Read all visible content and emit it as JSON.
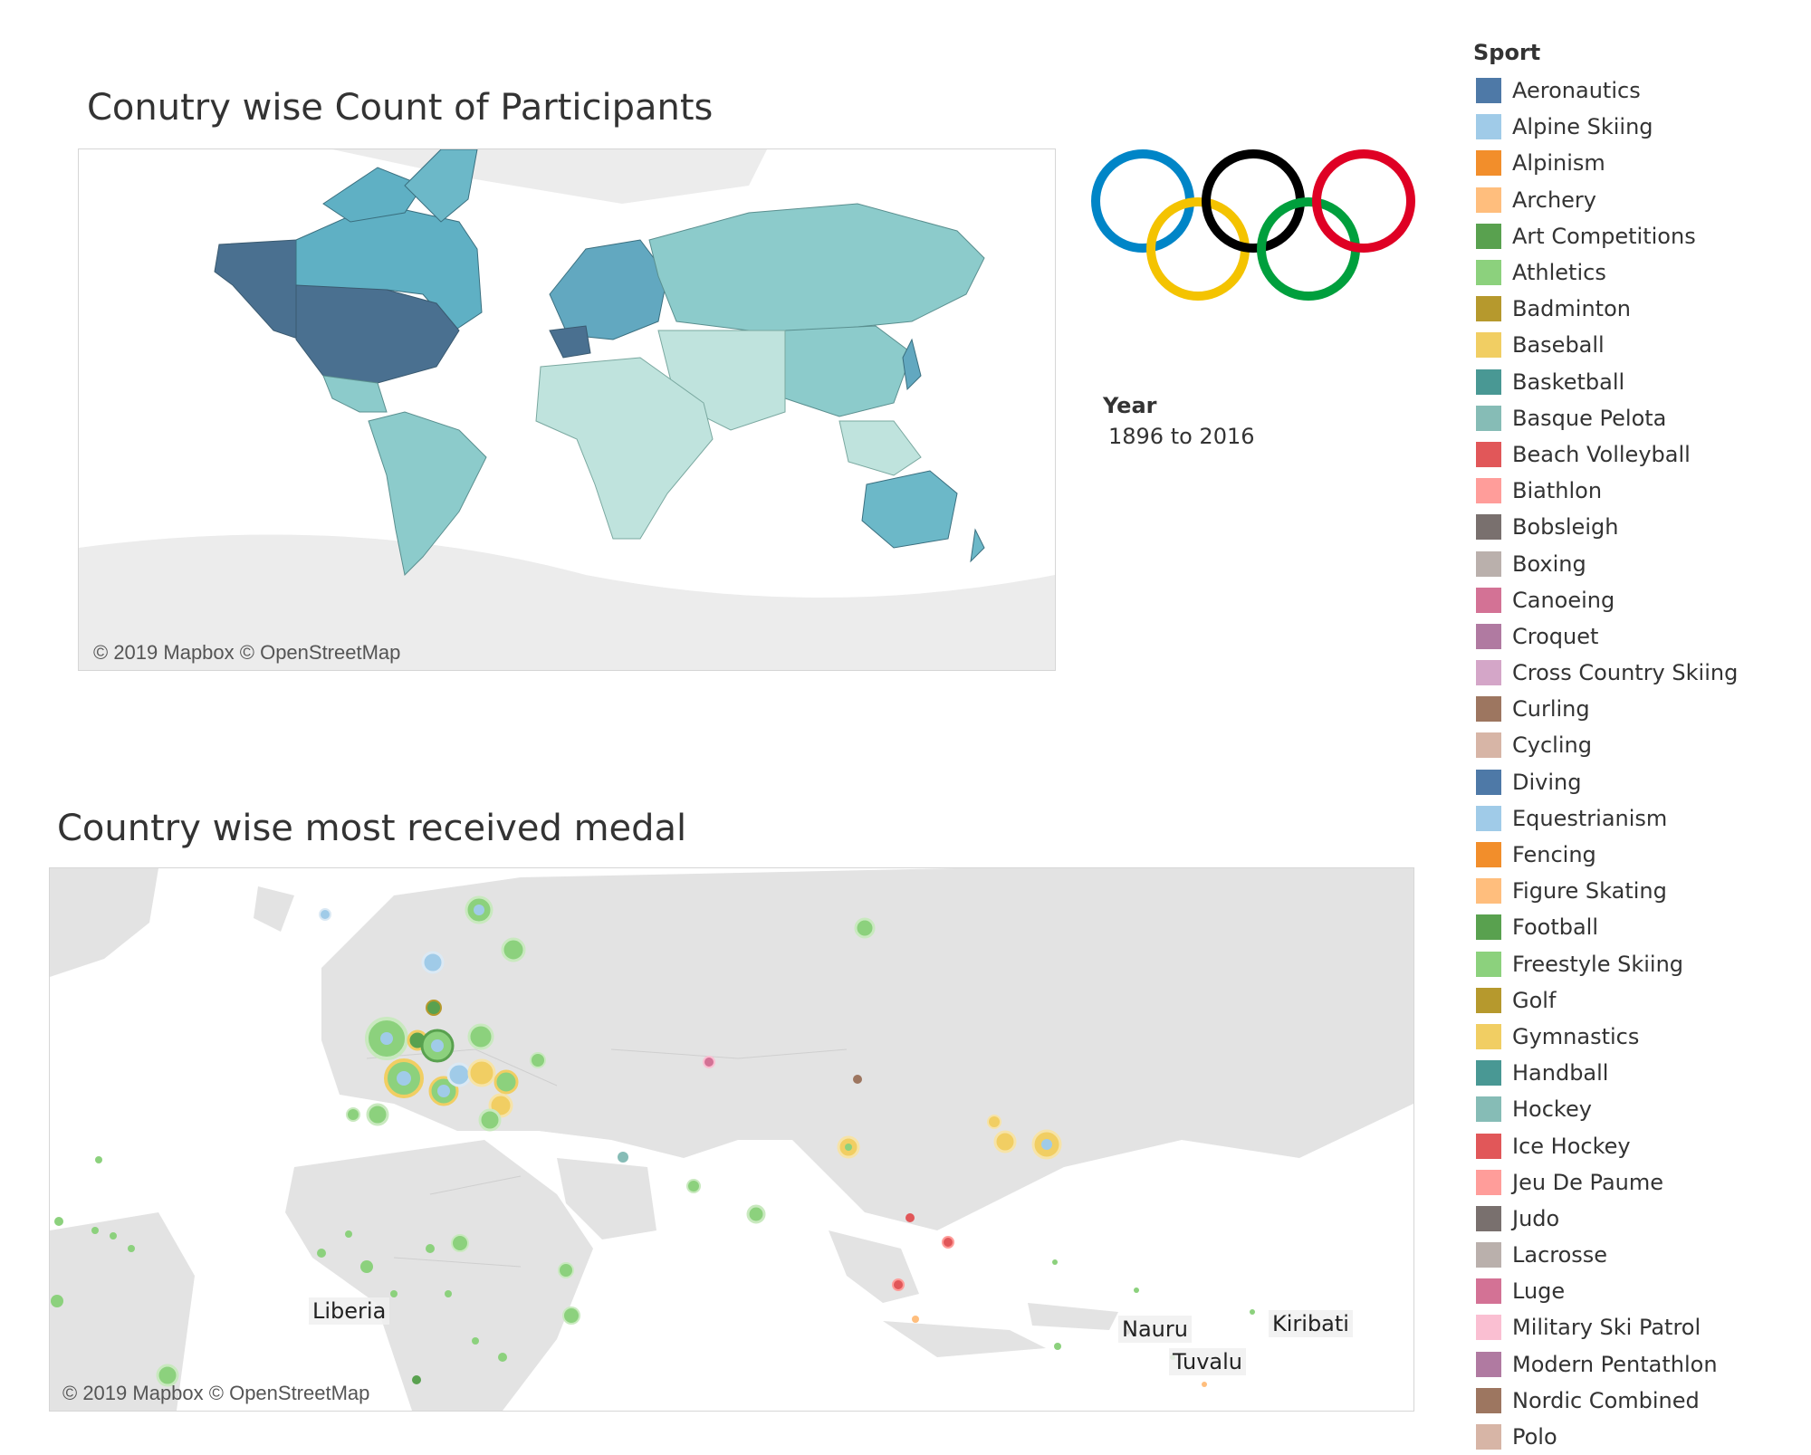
{
  "map1": {
    "title": "Conutry wise Count of Participants",
    "credit": "© 2019 Mapbox © OpenStreetMap"
  },
  "map2": {
    "title": "Country wise most received medal",
    "credit": "© 2019 Mapbox © OpenStreetMap",
    "place_labels": [
      "Liberia",
      "Nauru",
      "Tuvalu",
      "Kiribati"
    ]
  },
  "logo": {
    "icon": "olympic-rings-icon",
    "colors": [
      "#0085c7",
      "#f4c300",
      "#000000",
      "#009f3d",
      "#df0024"
    ]
  },
  "filter": {
    "label": "Year",
    "value": "1896 to 2016"
  },
  "legend": {
    "title": "Sport",
    "items": [
      {
        "label": "Aeronautics",
        "color": "#4e79a7"
      },
      {
        "label": "Alpine Skiing",
        "color": "#a0cbe8"
      },
      {
        "label": "Alpinism",
        "color": "#f28e2b"
      },
      {
        "label": "Archery",
        "color": "#ffbe7d"
      },
      {
        "label": "Art Competitions",
        "color": "#59a14f"
      },
      {
        "label": "Athletics",
        "color": "#8cd17d"
      },
      {
        "label": "Badminton",
        "color": "#b6992d"
      },
      {
        "label": "Baseball",
        "color": "#f1ce63"
      },
      {
        "label": "Basketball",
        "color": "#499894"
      },
      {
        "label": "Basque Pelota",
        "color": "#86bcb6"
      },
      {
        "label": "Beach Volleyball",
        "color": "#e15759"
      },
      {
        "label": "Biathlon",
        "color": "#ff9d9a"
      },
      {
        "label": "Bobsleigh",
        "color": "#79706e"
      },
      {
        "label": "Boxing",
        "color": "#bab0ac"
      },
      {
        "label": "Canoeing",
        "color": "#d37295"
      },
      {
        "label": "Croquet",
        "color": "#b07aa1"
      },
      {
        "label": "Cross Country Skiing",
        "color": "#d4a6c8"
      },
      {
        "label": "Curling",
        "color": "#9d7660"
      },
      {
        "label": "Cycling",
        "color": "#d7b5a6"
      },
      {
        "label": "Diving",
        "color": "#4e79a7"
      },
      {
        "label": "Equestrianism",
        "color": "#a0cbe8"
      },
      {
        "label": "Fencing",
        "color": "#f28e2b"
      },
      {
        "label": "Figure Skating",
        "color": "#ffbe7d"
      },
      {
        "label": "Football",
        "color": "#59a14f"
      },
      {
        "label": "Freestyle Skiing",
        "color": "#8cd17d"
      },
      {
        "label": "Golf",
        "color": "#b6992d"
      },
      {
        "label": "Gymnastics",
        "color": "#f1ce63"
      },
      {
        "label": "Handball",
        "color": "#499894"
      },
      {
        "label": "Hockey",
        "color": "#86bcb6"
      },
      {
        "label": "Ice Hockey",
        "color": "#e15759"
      },
      {
        "label": "Jeu De Paume",
        "color": "#ff9d9a"
      },
      {
        "label": "Judo",
        "color": "#79706e"
      },
      {
        "label": "Lacrosse",
        "color": "#bab0ac"
      },
      {
        "label": "Luge",
        "color": "#d37295"
      },
      {
        "label": "Military Ski Patrol",
        "color": "#fabfd2"
      },
      {
        "label": "Modern Pentathlon",
        "color": "#b07aa1"
      },
      {
        "label": "Nordic Combined",
        "color": "#9d7660"
      },
      {
        "label": "Polo",
        "color": "#d7b5a6"
      }
    ]
  }
}
